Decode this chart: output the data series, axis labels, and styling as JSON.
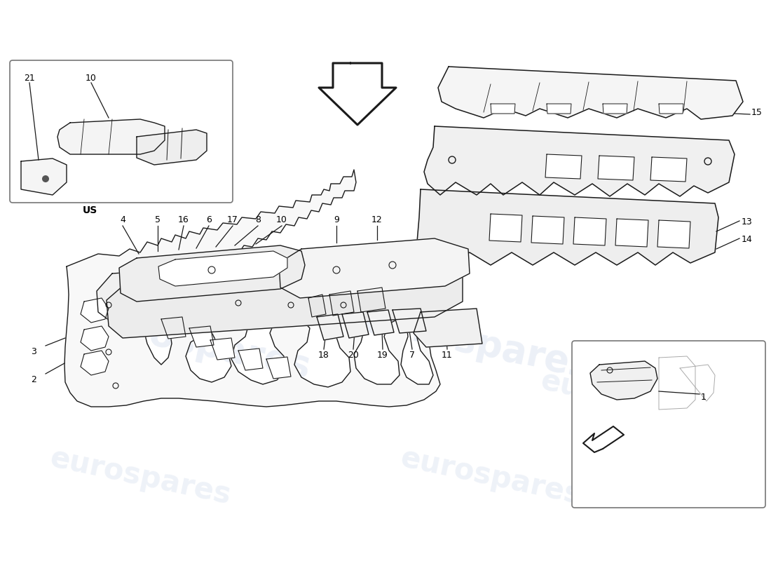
{
  "background_color": "#ffffff",
  "line_color": "#1a1a1a",
  "watermark_color": "#c8d4e8",
  "watermark_text": "eurospares",
  "fig_width": 11.0,
  "fig_height": 8.0
}
